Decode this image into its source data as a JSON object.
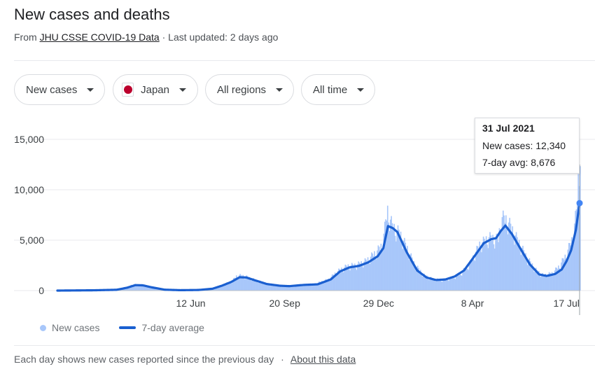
{
  "header": {
    "title": "New cases and deaths",
    "source_prefix": "From ",
    "source_link": "JHU CSSE COVID-19 Data",
    "updated": " · Last updated: 2 days ago"
  },
  "filters": {
    "metric": "New cases",
    "country": "Japan",
    "region": "All regions",
    "time": "All time"
  },
  "tooltip": {
    "date": "31 Jul 2021",
    "new_cases": "New cases: 12,340",
    "avg": "7-day avg: 8,676"
  },
  "legend": {
    "bars_label": "New cases",
    "line_label": "7-day average"
  },
  "footer": {
    "note": "Each day shows new cases reported since the previous day",
    "separator": "·",
    "about_link": "About this data"
  },
  "colors": {
    "bars": "#a8c7fa",
    "line": "#1a5fd0",
    "marker": "#4285f4",
    "grid": "#e8eaed",
    "axis_text": "#3c4043"
  },
  "chart_data": {
    "type": "bar",
    "x_start": "2020-01-22",
    "x_end": "2021-07-31",
    "ylim": [
      0,
      15000
    ],
    "y_ticks": [
      0,
      5000,
      10000,
      15000
    ],
    "y_tick_labels": [
      "0",
      "5,000",
      "10,000",
      "15,000"
    ],
    "x_tick_labels": [
      {
        "date": "2020-06-12",
        "label": "12 Jun"
      },
      {
        "date": "2020-09-20",
        "label": "20 Sep"
      },
      {
        "date": "2020-12-29",
        "label": "29 Dec"
      },
      {
        "date": "2021-04-08",
        "label": "8 Apr"
      },
      {
        "date": "2021-07-17",
        "label": "17 Jul"
      }
    ],
    "highlight": {
      "date": "2021-07-31",
      "new_cases": 12340,
      "avg": 8676
    },
    "series": [
      {
        "name": "New cases",
        "points": [
          [
            "2020-01-22",
            0
          ],
          [
            "2020-03-01",
            40
          ],
          [
            "2020-03-20",
            60
          ],
          [
            "2020-04-01",
            150
          ],
          [
            "2020-04-10",
            580
          ],
          [
            "2020-04-18",
            620
          ],
          [
            "2020-04-30",
            380
          ],
          [
            "2020-05-10",
            120
          ],
          [
            "2020-05-31",
            40
          ],
          [
            "2020-06-15",
            60
          ],
          [
            "2020-06-30",
            100
          ],
          [
            "2020-07-05",
            220
          ],
          [
            "2020-07-15",
            550
          ],
          [
            "2020-07-25",
            900
          ],
          [
            "2020-07-31",
            1500
          ],
          [
            "2020-08-05",
            1450
          ],
          [
            "2020-08-10",
            1350
          ],
          [
            "2020-08-20",
            1000
          ],
          [
            "2020-09-01",
            650
          ],
          [
            "2020-09-15",
            500
          ],
          [
            "2020-09-25",
            450
          ],
          [
            "2020-10-10",
            600
          ],
          [
            "2020-10-20",
            620
          ],
          [
            "2020-11-05",
            1100
          ],
          [
            "2020-11-15",
            1900
          ],
          [
            "2020-11-25",
            2400
          ],
          [
            "2020-12-05",
            2500
          ],
          [
            "2020-12-15",
            2900
          ],
          [
            "2020-12-25",
            3700
          ],
          [
            "2021-01-01",
            4400
          ],
          [
            "2021-01-07",
            7800
          ],
          [
            "2021-01-12",
            6300
          ],
          [
            "2021-01-20",
            5600
          ],
          [
            "2021-01-28",
            4100
          ],
          [
            "2021-02-05",
            2500
          ],
          [
            "2021-02-15",
            1500
          ],
          [
            "2021-02-25",
            1100
          ],
          [
            "2021-03-05",
            1050
          ],
          [
            "2021-03-15",
            1200
          ],
          [
            "2021-03-25",
            1600
          ],
          [
            "2021-04-05",
            2700
          ],
          [
            "2021-04-15",
            4500
          ],
          [
            "2021-04-25",
            5200
          ],
          [
            "2021-05-05",
            5000
          ],
          [
            "2021-05-08",
            7200
          ],
          [
            "2021-05-15",
            6800
          ],
          [
            "2021-05-25",
            5000
          ],
          [
            "2021-06-05",
            3100
          ],
          [
            "2021-06-15",
            1900
          ],
          [
            "2021-06-22",
            1500
          ],
          [
            "2021-07-01",
            1700
          ],
          [
            "2021-07-08",
            2300
          ],
          [
            "2021-07-15",
            3300
          ],
          [
            "2021-07-22",
            4900
          ],
          [
            "2021-07-27",
            7600
          ],
          [
            "2021-07-29",
            10700
          ],
          [
            "2021-07-31",
            12340
          ]
        ]
      },
      {
        "name": "7-day average",
        "points": [
          [
            "2020-01-22",
            0
          ],
          [
            "2020-03-01",
            30
          ],
          [
            "2020-03-25",
            80
          ],
          [
            "2020-04-05",
            280
          ],
          [
            "2020-04-14",
            540
          ],
          [
            "2020-04-22",
            520
          ],
          [
            "2020-05-01",
            330
          ],
          [
            "2020-05-15",
            90
          ],
          [
            "2020-06-01",
            40
          ],
          [
            "2020-06-20",
            60
          ],
          [
            "2020-07-05",
            180
          ],
          [
            "2020-07-15",
            480
          ],
          [
            "2020-07-25",
            850
          ],
          [
            "2020-08-03",
            1320
          ],
          [
            "2020-08-10",
            1300
          ],
          [
            "2020-08-20",
            1000
          ],
          [
            "2020-09-01",
            650
          ],
          [
            "2020-09-15",
            480
          ],
          [
            "2020-09-25",
            440
          ],
          [
            "2020-10-10",
            560
          ],
          [
            "2020-10-25",
            620
          ],
          [
            "2020-11-08",
            1100
          ],
          [
            "2020-11-18",
            1900
          ],
          [
            "2020-11-28",
            2300
          ],
          [
            "2020-12-08",
            2450
          ],
          [
            "2020-12-18",
            2800
          ],
          [
            "2020-12-28",
            3400
          ],
          [
            "2021-01-03",
            4200
          ],
          [
            "2021-01-08",
            6400
          ],
          [
            "2021-01-13",
            6200
          ],
          [
            "2021-01-18",
            5800
          ],
          [
            "2021-01-28",
            3800
          ],
          [
            "2021-02-08",
            2000
          ],
          [
            "2021-02-18",
            1300
          ],
          [
            "2021-02-28",
            1050
          ],
          [
            "2021-03-10",
            1100
          ],
          [
            "2021-03-20",
            1400
          ],
          [
            "2021-03-30",
            2000
          ],
          [
            "2021-04-10",
            3400
          ],
          [
            "2021-04-20",
            4700
          ],
          [
            "2021-04-28",
            5100
          ],
          [
            "2021-05-03",
            5200
          ],
          [
            "2021-05-08",
            5900
          ],
          [
            "2021-05-13",
            6450
          ],
          [
            "2021-05-20",
            5600
          ],
          [
            "2021-05-30",
            4000
          ],
          [
            "2021-06-08",
            2600
          ],
          [
            "2021-06-18",
            1600
          ],
          [
            "2021-06-26",
            1450
          ],
          [
            "2021-07-05",
            1650
          ],
          [
            "2021-07-12",
            2100
          ],
          [
            "2021-07-17",
            2900
          ],
          [
            "2021-07-22",
            4000
          ],
          [
            "2021-07-27",
            6000
          ],
          [
            "2021-07-31",
            8676
          ]
        ]
      }
    ]
  }
}
